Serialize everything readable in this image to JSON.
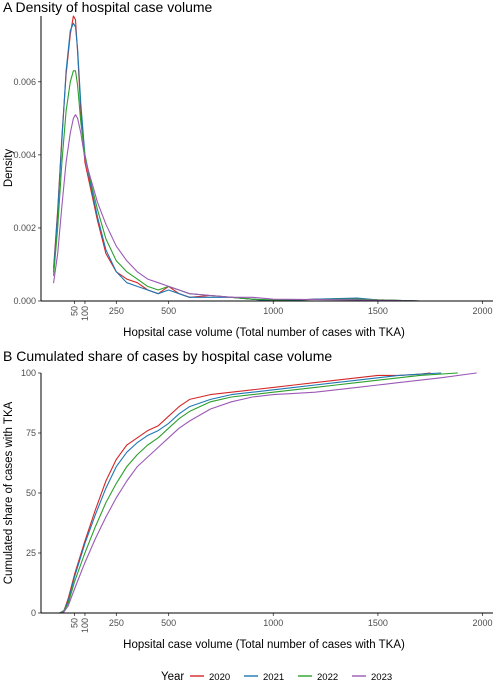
{
  "colors": {
    "2020": "#d62728",
    "2021": "#1f77b4",
    "2022": "#2ca02c",
    "2023": "#9b59b6"
  },
  "legend": {
    "title": "Year",
    "placement": "bottom",
    "items": [
      "2020",
      "2021",
      "2022",
      "2023"
    ]
  },
  "chart_data": [
    {
      "type": "line",
      "title": "A  Density of hospital case volume",
      "xlabel": "Hopsital case volume (Total number of cases with TKA)",
      "ylabel": "Density",
      "xlim": [
        -110,
        2050
      ],
      "ylim": [
        0,
        0.0078
      ],
      "x_ticks": [
        50,
        100,
        250,
        500,
        1000,
        1500,
        2000
      ],
      "y_ticks": [
        0,
        0.002,
        0.004,
        0.006
      ],
      "y_tick_labels": [
        "0.000",
        "0.002",
        "0.004",
        "0.006"
      ],
      "grid": false,
      "series": [
        {
          "name": "2020",
          "x": [
            -50,
            -30,
            -10,
            10,
            30,
            45,
            55,
            65,
            80,
            100,
            130,
            160,
            200,
            250,
            300,
            350,
            400,
            450,
            500,
            550,
            600,
            700,
            800,
            900,
            1000,
            1200,
            1400,
            1500,
            1700,
            2000
          ],
          "y": [
            0.0009,
            0.0025,
            0.0045,
            0.0062,
            0.0073,
            0.0078,
            0.0077,
            0.0068,
            0.0052,
            0.0038,
            0.003,
            0.0022,
            0.0013,
            0.0008,
            0.0006,
            0.0005,
            0.0003,
            0.0002,
            0.0004,
            0.0002,
            0.0001,
            0.00015,
            0.0001,
            5e-05,
            0.0,
            5e-05,
            5e-05,
            3e-05,
            0.0,
            0.0
          ]
        },
        {
          "name": "2021",
          "x": [
            -50,
            -30,
            -10,
            10,
            30,
            45,
            55,
            65,
            80,
            100,
            130,
            160,
            200,
            250,
            300,
            350,
            400,
            450,
            500,
            550,
            600,
            700,
            800,
            900,
            1000,
            1200,
            1400,
            1500,
            1700,
            2000
          ],
          "y": [
            0.0008,
            0.0024,
            0.0044,
            0.0063,
            0.0074,
            0.0076,
            0.0075,
            0.0069,
            0.0054,
            0.004,
            0.0031,
            0.0023,
            0.0014,
            0.0008,
            0.0005,
            0.0004,
            0.0003,
            0.0002,
            0.0003,
            0.0002,
            0.0001,
            0.0001,
            0.0001,
            5e-05,
            0.0,
            5e-05,
            8e-05,
            3e-05,
            0.0,
            0.0
          ]
        },
        {
          "name": "2022",
          "x": [
            -50,
            -30,
            -10,
            10,
            30,
            45,
            55,
            65,
            80,
            100,
            130,
            160,
            200,
            250,
            300,
            350,
            400,
            450,
            500,
            550,
            600,
            700,
            800,
            900,
            1000,
            1200,
            1400,
            1500,
            1700,
            2000
          ],
          "y": [
            0.0007,
            0.002,
            0.0038,
            0.0052,
            0.006,
            0.0063,
            0.0063,
            0.0059,
            0.0049,
            0.004,
            0.0032,
            0.0025,
            0.0017,
            0.0011,
            0.0008,
            0.0006,
            0.0004,
            0.0003,
            0.0004,
            0.0003,
            0.0002,
            0.00015,
            0.0001,
            5e-05,
            3e-05,
            4e-05,
            5e-05,
            3e-05,
            0.0,
            0.0
          ]
        },
        {
          "name": "2023",
          "x": [
            -50,
            -30,
            -10,
            10,
            30,
            45,
            55,
            65,
            80,
            100,
            130,
            160,
            200,
            250,
            300,
            350,
            400,
            450,
            500,
            550,
            600,
            700,
            800,
            900,
            1000,
            1200,
            1400,
            1500,
            1700,
            2000
          ],
          "y": [
            0.0005,
            0.0013,
            0.0026,
            0.0038,
            0.0046,
            0.005,
            0.0051,
            0.005,
            0.0046,
            0.0039,
            0.0033,
            0.0027,
            0.0021,
            0.0015,
            0.0011,
            0.0008,
            0.0006,
            0.0005,
            0.0004,
            0.0003,
            0.0002,
            0.00015,
            0.0001,
            0.0001,
            5e-05,
            4e-05,
            3e-05,
            2e-05,
            0.0,
            0.0
          ]
        }
      ]
    },
    {
      "type": "line",
      "title": "B  Cumulated share of cases by hospital case volume",
      "xlabel": "Hopsital case volume (Total number of cases with TKA)",
      "ylabel": "Cumulated share of cases with TKA",
      "xlim": [
        -110,
        2050
      ],
      "ylim": [
        0,
        100
      ],
      "x_ticks": [
        50,
        100,
        250,
        500,
        1000,
        1500,
        2000
      ],
      "y_ticks": [
        0,
        25,
        50,
        75,
        100
      ],
      "y_tick_labels": [
        "0",
        "25",
        "50",
        "75",
        "100"
      ],
      "grid": false,
      "series": [
        {
          "name": "2020",
          "x": [
            -20,
            0,
            20,
            50,
            100,
            150,
            200,
            250,
            300,
            350,
            400,
            450,
            500,
            550,
            600,
            700,
            800,
            900,
            1000,
            1100,
            1200,
            1300,
            1400,
            1500,
            1600,
            1700,
            1750
          ],
          "y": [
            0,
            1,
            6,
            16,
            30,
            43,
            55,
            64,
            70,
            73,
            76,
            78,
            82,
            86,
            89,
            91,
            92,
            93,
            94,
            95,
            96,
            97,
            98,
            99,
            99,
            99.5,
            100
          ]
        },
        {
          "name": "2021",
          "x": [
            -20,
            0,
            20,
            50,
            100,
            150,
            200,
            250,
            300,
            350,
            400,
            450,
            500,
            550,
            600,
            700,
            800,
            900,
            1000,
            1100,
            1200,
            1300,
            1400,
            1500,
            1600,
            1700,
            1800
          ],
          "y": [
            0,
            1,
            5,
            15,
            29,
            41,
            52,
            61,
            67,
            71,
            74,
            76,
            79,
            83,
            86,
            89,
            91,
            92,
            93,
            94,
            95,
            96,
            97,
            98,
            99,
            99.5,
            100
          ]
        },
        {
          "name": "2022",
          "x": [
            -20,
            0,
            20,
            50,
            100,
            150,
            200,
            250,
            300,
            350,
            400,
            450,
            500,
            550,
            600,
            700,
            800,
            900,
            1000,
            1100,
            1200,
            1300,
            1400,
            1500,
            1600,
            1700,
            1880
          ],
          "y": [
            0,
            1,
            4,
            13,
            25,
            36,
            46,
            54,
            61,
            66,
            70,
            73,
            77,
            81,
            84,
            88,
            90,
            91,
            92,
            93,
            94,
            95,
            96,
            97,
            98,
            99,
            100
          ]
        },
        {
          "name": "2023",
          "x": [
            -20,
            0,
            20,
            50,
            100,
            150,
            200,
            250,
            300,
            350,
            400,
            450,
            500,
            550,
            600,
            700,
            800,
            900,
            1000,
            1100,
            1200,
            1300,
            1400,
            1500,
            1600,
            1700,
            1800,
            1970
          ],
          "y": [
            0,
            0.5,
            3,
            10,
            21,
            31,
            40,
            48,
            55,
            61,
            65,
            69,
            73,
            77,
            80,
            85,
            88,
            90,
            91,
            91.5,
            92,
            93,
            94,
            95,
            96,
            97,
            98,
            100
          ]
        }
      ]
    }
  ]
}
